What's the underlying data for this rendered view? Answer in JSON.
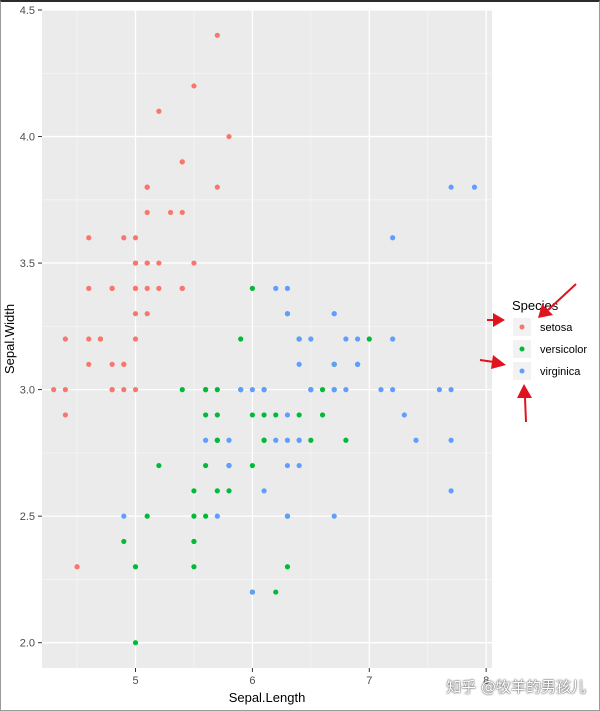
{
  "chart_data": {
    "type": "scatter",
    "title": "",
    "xlabel": "Sepal.Length",
    "ylabel": "Sepal.Width",
    "xlim": [
      4.2,
      8.05
    ],
    "ylim": [
      1.9,
      4.5
    ],
    "x_ticks": [
      5,
      6,
      7,
      8
    ],
    "x_tick_labels": [
      "5",
      "6",
      "7",
      "8"
    ],
    "y_ticks": [
      2.0,
      2.5,
      3.0,
      3.5,
      4.0,
      4.5
    ],
    "y_tick_labels": [
      "2.0",
      "2.5",
      "3.0",
      "3.5",
      "4.0",
      "4.5"
    ],
    "grid": true,
    "legend": {
      "title": "Species",
      "position": "right",
      "entries": [
        {
          "label": "setosa",
          "color": "#F8766D"
        },
        {
          "label": "versicolor",
          "color": "#00BA38"
        },
        {
          "label": "virginica",
          "color": "#619CFF"
        }
      ]
    },
    "series": [
      {
        "name": "setosa",
        "color": "#F8766D",
        "points": [
          [
            5.1,
            3.5
          ],
          [
            4.9,
            3.0
          ],
          [
            4.7,
            3.2
          ],
          [
            4.6,
            3.1
          ],
          [
            5.0,
            3.6
          ],
          [
            5.4,
            3.9
          ],
          [
            4.6,
            3.4
          ],
          [
            5.0,
            3.4
          ],
          [
            4.4,
            2.9
          ],
          [
            4.9,
            3.1
          ],
          [
            5.4,
            3.7
          ],
          [
            4.8,
            3.4
          ],
          [
            4.8,
            3.0
          ],
          [
            4.3,
            3.0
          ],
          [
            5.8,
            4.0
          ],
          [
            5.7,
            4.4
          ],
          [
            5.4,
            3.9
          ],
          [
            5.1,
            3.5
          ],
          [
            5.7,
            3.8
          ],
          [
            5.1,
            3.8
          ],
          [
            5.4,
            3.4
          ],
          [
            5.1,
            3.7
          ],
          [
            4.6,
            3.6
          ],
          [
            5.1,
            3.3
          ],
          [
            4.8,
            3.4
          ],
          [
            5.0,
            3.0
          ],
          [
            5.0,
            3.4
          ],
          [
            5.2,
            3.5
          ],
          [
            5.2,
            3.4
          ],
          [
            4.7,
            3.2
          ],
          [
            4.8,
            3.1
          ],
          [
            5.4,
            3.4
          ],
          [
            5.2,
            4.1
          ],
          [
            5.5,
            4.2
          ],
          [
            4.9,
            3.1
          ],
          [
            5.0,
            3.2
          ],
          [
            5.5,
            3.5
          ],
          [
            4.9,
            3.6
          ],
          [
            4.4,
            3.0
          ],
          [
            5.1,
            3.4
          ],
          [
            5.0,
            3.5
          ],
          [
            4.5,
            2.3
          ],
          [
            4.4,
            3.2
          ],
          [
            5.0,
            3.5
          ],
          [
            5.1,
            3.8
          ],
          [
            4.8,
            3.0
          ],
          [
            5.1,
            3.8
          ],
          [
            4.6,
            3.2
          ],
          [
            5.3,
            3.7
          ],
          [
            5.0,
            3.3
          ]
        ]
      },
      {
        "name": "versicolor",
        "color": "#00BA38",
        "points": [
          [
            7.0,
            3.2
          ],
          [
            6.4,
            3.2
          ],
          [
            6.9,
            3.1
          ],
          [
            5.5,
            2.3
          ],
          [
            6.5,
            2.8
          ],
          [
            5.7,
            2.8
          ],
          [
            6.3,
            3.3
          ],
          [
            4.9,
            2.4
          ],
          [
            6.6,
            2.9
          ],
          [
            5.2,
            2.7
          ],
          [
            5.0,
            2.0
          ],
          [
            5.9,
            3.0
          ],
          [
            6.0,
            2.2
          ],
          [
            6.1,
            2.9
          ],
          [
            5.6,
            2.9
          ],
          [
            6.7,
            3.1
          ],
          [
            5.6,
            3.0
          ],
          [
            5.8,
            2.7
          ],
          [
            6.2,
            2.2
          ],
          [
            5.6,
            2.5
          ],
          [
            5.9,
            3.2
          ],
          [
            6.1,
            2.8
          ],
          [
            6.3,
            2.5
          ],
          [
            6.1,
            2.8
          ],
          [
            6.4,
            2.9
          ],
          [
            6.6,
            3.0
          ],
          [
            6.8,
            2.8
          ],
          [
            6.7,
            3.0
          ],
          [
            6.0,
            2.9
          ],
          [
            5.7,
            2.6
          ],
          [
            5.5,
            2.4
          ],
          [
            5.5,
            2.4
          ],
          [
            5.8,
            2.7
          ],
          [
            6.0,
            2.7
          ],
          [
            5.4,
            3.0
          ],
          [
            6.0,
            3.4
          ],
          [
            6.7,
            3.1
          ],
          [
            6.3,
            2.3
          ],
          [
            5.6,
            3.0
          ],
          [
            5.5,
            2.5
          ],
          [
            5.5,
            2.6
          ],
          [
            6.1,
            3.0
          ],
          [
            5.8,
            2.6
          ],
          [
            5.0,
            2.3
          ],
          [
            5.6,
            2.7
          ],
          [
            5.7,
            3.0
          ],
          [
            5.7,
            2.9
          ],
          [
            6.2,
            2.9
          ],
          [
            5.1,
            2.5
          ],
          [
            5.7,
            2.8
          ]
        ]
      },
      {
        "name": "virginica",
        "color": "#619CFF",
        "points": [
          [
            6.3,
            3.3
          ],
          [
            5.8,
            2.7
          ],
          [
            7.1,
            3.0
          ],
          [
            6.3,
            2.9
          ],
          [
            6.5,
            3.0
          ],
          [
            7.6,
            3.0
          ],
          [
            4.9,
            2.5
          ],
          [
            7.3,
            2.9
          ],
          [
            6.7,
            2.5
          ],
          [
            7.2,
            3.6
          ],
          [
            6.5,
            3.2
          ],
          [
            6.4,
            2.7
          ],
          [
            6.8,
            3.0
          ],
          [
            5.7,
            2.5
          ],
          [
            5.8,
            2.8
          ],
          [
            6.4,
            3.2
          ],
          [
            6.5,
            3.0
          ],
          [
            7.7,
            3.8
          ],
          [
            7.7,
            2.6
          ],
          [
            6.0,
            2.2
          ],
          [
            6.9,
            3.2
          ],
          [
            5.6,
            2.8
          ],
          [
            7.7,
            2.8
          ],
          [
            6.3,
            2.7
          ],
          [
            6.7,
            3.3
          ],
          [
            7.2,
            3.2
          ],
          [
            6.2,
            2.8
          ],
          [
            6.1,
            3.0
          ],
          [
            6.4,
            2.8
          ],
          [
            7.2,
            3.0
          ],
          [
            7.4,
            2.8
          ],
          [
            7.9,
            3.8
          ],
          [
            6.4,
            2.8
          ],
          [
            6.3,
            2.8
          ],
          [
            6.1,
            2.6
          ],
          [
            7.7,
            3.0
          ],
          [
            6.3,
            3.4
          ],
          [
            6.4,
            3.1
          ],
          [
            6.0,
            3.0
          ],
          [
            6.9,
            3.1
          ],
          [
            6.7,
            3.1
          ],
          [
            6.9,
            3.1
          ],
          [
            5.8,
            2.7
          ],
          [
            6.8,
            3.2
          ],
          [
            6.7,
            3.3
          ],
          [
            6.7,
            3.0
          ],
          [
            6.3,
            2.5
          ],
          [
            6.5,
            3.0
          ],
          [
            6.2,
            3.4
          ],
          [
            5.9,
            3.0
          ]
        ]
      }
    ]
  },
  "watermark": "知乎 @牧羊的男孩儿",
  "annotation_color": "#e0141e"
}
